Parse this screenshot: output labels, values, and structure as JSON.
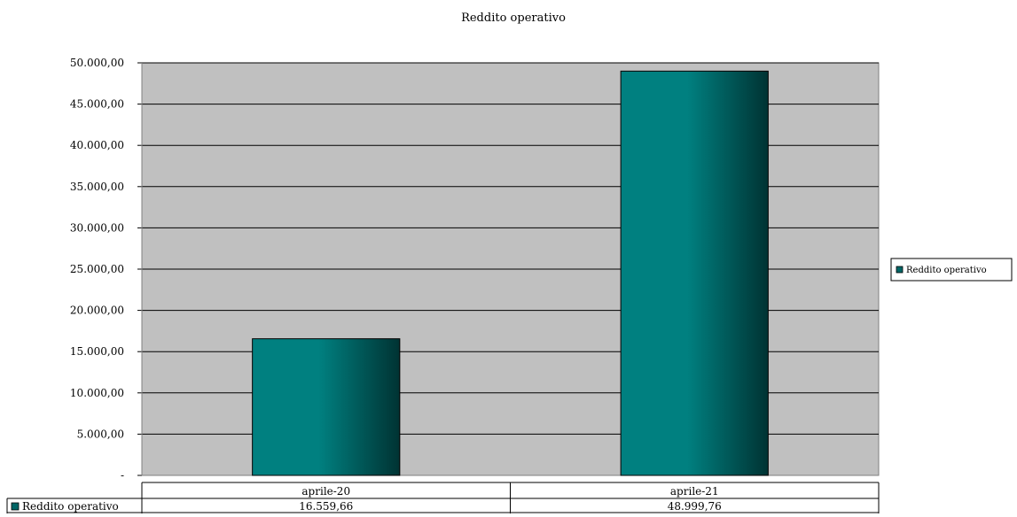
{
  "chart_data": {
    "type": "bar",
    "title": "Reddito operativo",
    "categories": [
      "aprile-20",
      "aprile-21"
    ],
    "series": [
      {
        "name": "Reddito operativo",
        "values": [
          16559.66,
          48999.76
        ],
        "value_labels": [
          "16.559,66",
          "48.999,76"
        ]
      }
    ],
    "ylim": [
      0,
      50000
    ],
    "y_ticks": [
      0,
      5000,
      10000,
      15000,
      20000,
      25000,
      30000,
      35000,
      40000,
      45000,
      50000
    ],
    "y_tick_labels": [
      "-",
      "5.000,00",
      "10.000,00",
      "15.000,00",
      "20.000,00",
      "25.000,00",
      "30.000,00",
      "35.000,00",
      "40.000,00",
      "45.000,00",
      "50.000,00"
    ],
    "grid": true,
    "legend_placement": "right",
    "data_table": true,
    "colors": {
      "plot_background": "#c0c0c0",
      "bar_light": "#008080",
      "bar_dark": "#003333",
      "gridline": "#000000",
      "legend_swatch": "#006666"
    }
  }
}
